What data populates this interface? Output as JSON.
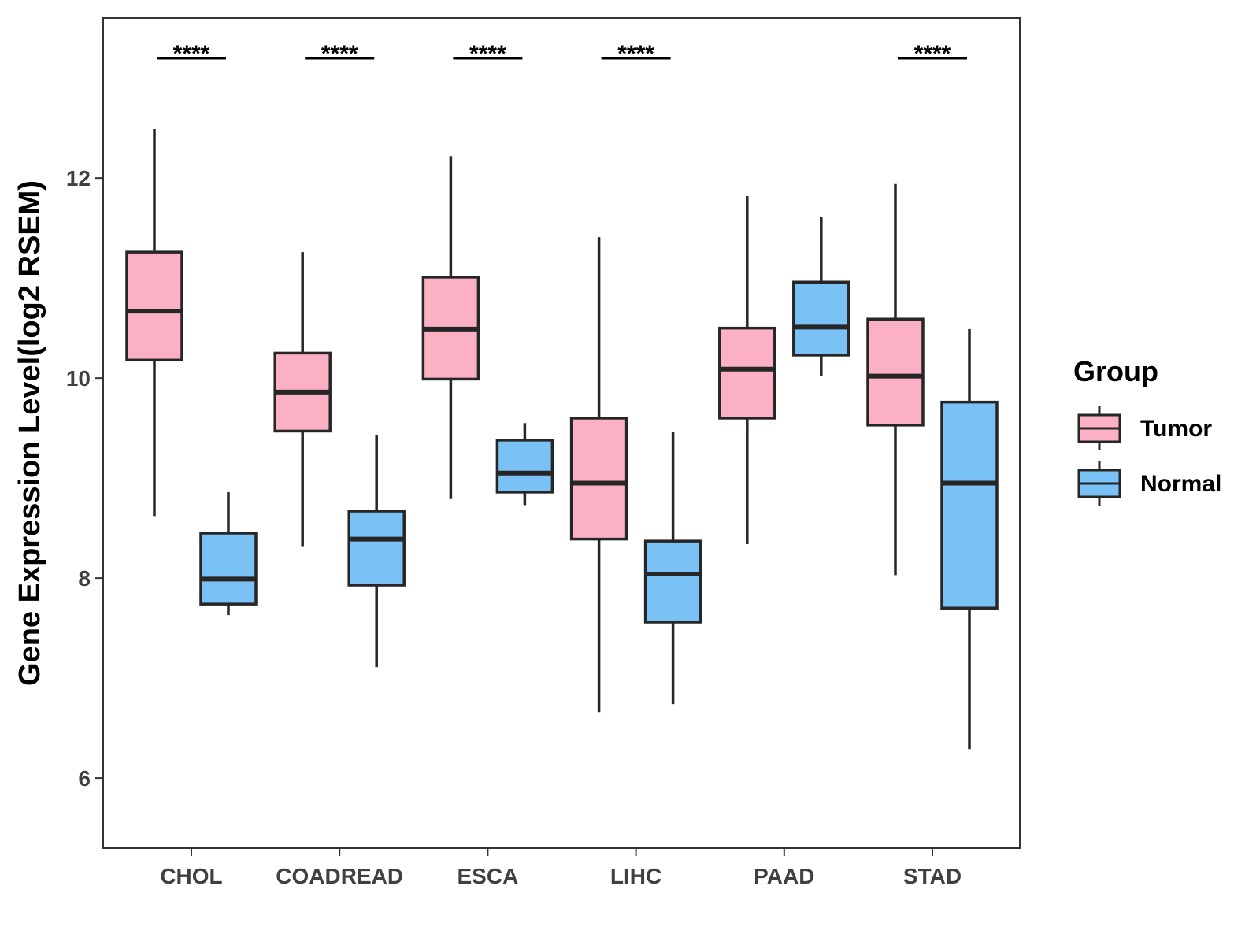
{
  "chart_data": {
    "type": "boxplot",
    "title": "",
    "xlabel": "",
    "ylabel": "Gene Expression Level(log2 RSEM)",
    "ylim": [
      5.3,
      13.6
    ],
    "yticks": [
      6,
      8,
      10,
      12
    ],
    "grid": false,
    "categories": [
      "CHOL",
      "COADREAD",
      "ESCA",
      "LIHC",
      "PAAD",
      "STAD"
    ],
    "legend": {
      "title": "Group",
      "position": "right",
      "entries": [
        "Tumor",
        "Normal"
      ]
    },
    "series": [
      {
        "name": "Tumor",
        "color": "#FBB1C3",
        "boxes": [
          {
            "min": 8.62,
            "q1": 10.18,
            "median": 10.67,
            "q3": 11.26,
            "max": 12.49
          },
          {
            "min": 8.32,
            "q1": 9.47,
            "median": 9.86,
            "q3": 10.25,
            "max": 11.26
          },
          {
            "min": 8.79,
            "q1": 9.99,
            "median": 10.49,
            "q3": 11.01,
            "max": 12.22
          },
          {
            "min": 6.66,
            "q1": 8.39,
            "median": 8.95,
            "q3": 9.6,
            "max": 11.41
          },
          {
            "min": 8.34,
            "q1": 9.6,
            "median": 10.09,
            "q3": 10.5,
            "max": 11.82
          },
          {
            "min": 8.03,
            "q1": 9.53,
            "median": 10.02,
            "q3": 10.59,
            "max": 11.94
          }
        ]
      },
      {
        "name": "Normal",
        "color": "#7AC1F6",
        "boxes": [
          {
            "min": 7.63,
            "q1": 7.74,
            "median": 7.99,
            "q3": 8.45,
            "max": 8.86
          },
          {
            "min": 7.11,
            "q1": 7.93,
            "median": 8.39,
            "q3": 8.67,
            "max": 9.43
          },
          {
            "min": 8.73,
            "q1": 8.86,
            "median": 9.05,
            "q3": 9.38,
            "max": 9.55
          },
          {
            "min": 6.74,
            "q1": 7.56,
            "median": 8.04,
            "q3": 8.37,
            "max": 9.46
          },
          {
            "min": 10.02,
            "q1": 10.23,
            "median": 10.51,
            "q3": 10.96,
            "max": 11.61
          },
          {
            "min": 6.29,
            "q1": 7.7,
            "median": 8.95,
            "q3": 9.76,
            "max": 10.49
          }
        ]
      }
    ],
    "annotations": [
      {
        "category": "CHOL",
        "label": "****"
      },
      {
        "category": "COADREAD",
        "label": "****"
      },
      {
        "category": "ESCA",
        "label": "****"
      },
      {
        "category": "LIHC",
        "label": "****"
      },
      {
        "category": "STAD",
        "label": "****"
      }
    ]
  }
}
